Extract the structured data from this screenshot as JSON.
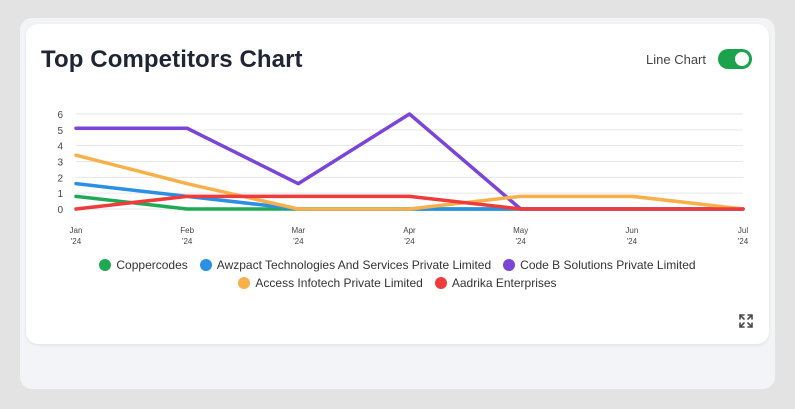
{
  "header": {
    "title": "Top Competitors Chart",
    "toggle_label": "Line Chart"
  },
  "icons": {
    "expand": "expand-icon"
  },
  "chart_data": {
    "type": "line",
    "title": "Top Competitors Chart",
    "x_ticks": [
      {
        "month": "Jan",
        "year": "'24"
      },
      {
        "month": "Feb",
        "year": "'24"
      },
      {
        "month": "Mar",
        "year": "'24"
      },
      {
        "month": "Apr",
        "year": "'24"
      },
      {
        "month": "May",
        "year": "'24"
      },
      {
        "month": "Jun",
        "year": "'24"
      },
      {
        "month": "Jul",
        "year": "'24"
      }
    ],
    "y_ticks": [
      0,
      1,
      2,
      3,
      4,
      5,
      6
    ],
    "ylim": [
      0,
      6
    ],
    "grid": true,
    "legend_position": "bottom",
    "series": [
      {
        "name": "Coppercodes",
        "color": "#1fa955",
        "values": [
          0.8,
          0,
          0,
          0,
          0,
          0,
          0
        ]
      },
      {
        "name": "Awzpact Technologies And Services Private Limited",
        "color": "#2b8fe3",
        "values": [
          1.6,
          0.8,
          0,
          0,
          0,
          0,
          0
        ]
      },
      {
        "name": "Code B Solutions Private Limited",
        "color": "#7b45d8",
        "values": [
          5.1,
          5.1,
          1.6,
          6,
          0,
          0,
          0
        ]
      },
      {
        "name": "Access Infotech Private Limited",
        "color": "#f7b04a",
        "values": [
          3.4,
          1.6,
          0,
          0,
          0.8,
          0.8,
          0
        ]
      },
      {
        "name": "Aadrika Enterprises",
        "color": "#ef3b3b",
        "values": [
          0,
          0.8,
          0.8,
          0.8,
          0,
          0,
          0
        ]
      }
    ]
  }
}
